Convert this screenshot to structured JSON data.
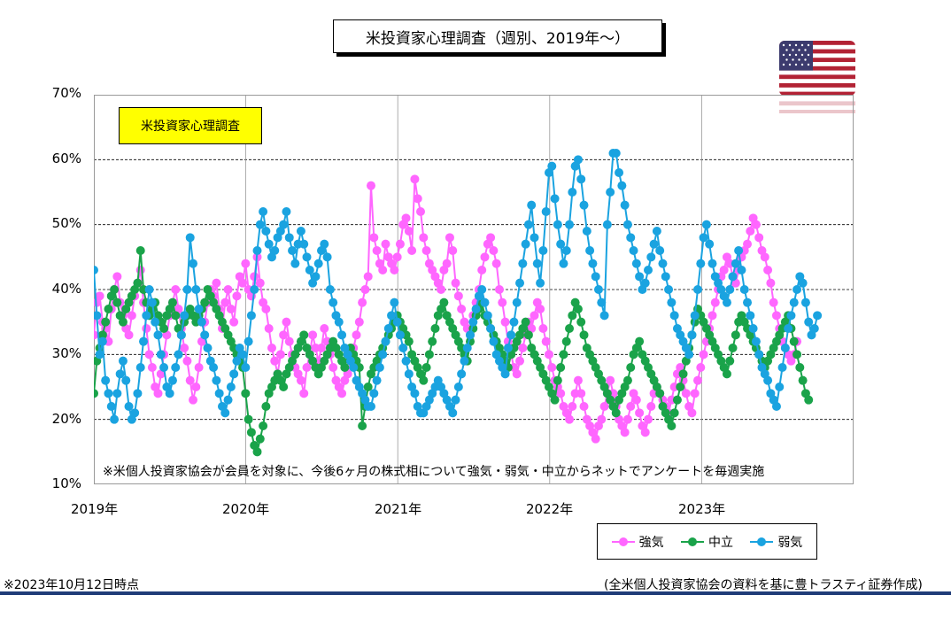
{
  "title": "米投資家心理調査（週別、2019年～）",
  "inner_label": "米投資家心理調査",
  "note": "※米個人投資家協会が会員を対象に、今後6ヶ月の株式相について強気・弱気・中立からネットでアンケートを毎週実施",
  "as_of": "※2023年10月12日時点",
  "source": "(全米個人投資家協会の資料を基に豊トラスティ証券作成)",
  "flag_icon": "us-flag-icon",
  "colors": {
    "bullish": "#ff66ff",
    "neutral": "#1aa34a",
    "bearish": "#1aa3e0",
    "accent_line": "#1f3c78"
  },
  "chart_data": {
    "type": "line",
    "title": "米投資家心理調査（週別、2019年～）",
    "x_tick_labels": [
      "2019年",
      "2020年",
      "2021年",
      "2022年",
      "2023年"
    ],
    "y_tick_labels": [
      "70%",
      "60%",
      "50%",
      "40%",
      "30%",
      "20%",
      "10%"
    ],
    "ylim": [
      10,
      70
    ],
    "x_unit": "year",
    "xlim": [
      2019.0,
      2024.0
    ],
    "grid": "horizontal dashed, vertical solid at year starts",
    "legend_position": "bottom-right",
    "series": [
      {
        "name": "強気",
        "color": "#ff66ff",
        "x_start": 2019.0,
        "x_step": 0.0192,
        "values": [
          33,
          38,
          39,
          35,
          34,
          32,
          37,
          40,
          42,
          38,
          36,
          34,
          33,
          36,
          39,
          41,
          43,
          38,
          34,
          30,
          28,
          25,
          24,
          27,
          30,
          33,
          36,
          38,
          40,
          37,
          34,
          31,
          29,
          26,
          23,
          25,
          28,
          32,
          35,
          38,
          40,
          39,
          41,
          37,
          34,
          38,
          40,
          37,
          35,
          39,
          42,
          41,
          44,
          40,
          39,
          42,
          45,
          41,
          38,
          37,
          34,
          31,
          29,
          27,
          30,
          33,
          35,
          32,
          30,
          28,
          27,
          26,
          24,
          28,
          30,
          33,
          31,
          29,
          31,
          34,
          32,
          30,
          28,
          26,
          25,
          24,
          26,
          27,
          29,
          31,
          33,
          35,
          38,
          40,
          42,
          56,
          48,
          46,
          44,
          43,
          47,
          45,
          44,
          43,
          45,
          47,
          50,
          51,
          49,
          46,
          57,
          54,
          52,
          48,
          46,
          44,
          43,
          42,
          41,
          40,
          43,
          44,
          48,
          46,
          41,
          39,
          37,
          35,
          34,
          33,
          36,
          38,
          40,
          43,
          45,
          47,
          48,
          46,
          44,
          40,
          38,
          35,
          32,
          30,
          28,
          27,
          29,
          31,
          33,
          35,
          34,
          36,
          38,
          37,
          34,
          32,
          30,
          28,
          26,
          25,
          24,
          22,
          21,
          20,
          22,
          24,
          26,
          24,
          22,
          20,
          19,
          18,
          17,
          19,
          20,
          22,
          24,
          26,
          24,
          22,
          20,
          19,
          18,
          20,
          22,
          24,
          23,
          21,
          19,
          18,
          20,
          22,
          24,
          25,
          24,
          23,
          22,
          21,
          23,
          25,
          27,
          28,
          26,
          24,
          22,
          21,
          24,
          26,
          28,
          30,
          32,
          34,
          36,
          38,
          40,
          42,
          43,
          45,
          44,
          42,
          41,
          43,
          45,
          46,
          47,
          49,
          51,
          50,
          48,
          46,
          45,
          43,
          41,
          38,
          36,
          34,
          32,
          31,
          30,
          29,
          30,
          32
        ]
      },
      {
        "name": "中立",
        "color": "#1aa34a",
        "x_start": 2019.0,
        "x_step": 0.0192,
        "values": [
          24,
          29,
          31,
          33,
          35,
          37,
          39,
          40,
          38,
          36,
          35,
          37,
          38,
          39,
          40,
          41,
          46,
          40,
          38,
          36,
          37,
          38,
          36,
          35,
          34,
          36,
          37,
          38,
          36,
          34,
          33,
          35,
          36,
          37,
          36,
          35,
          36,
          37,
          38,
          40,
          39,
          38,
          37,
          36,
          35,
          34,
          33,
          32,
          31,
          30,
          29,
          28,
          24,
          20,
          18,
          16,
          15,
          17,
          19,
          22,
          24,
          25,
          26,
          27,
          26,
          25,
          27,
          28,
          29,
          30,
          31,
          32,
          33,
          31,
          30,
          29,
          28,
          27,
          28,
          29,
          30,
          31,
          32,
          31,
          30,
          29,
          28,
          30,
          31,
          30,
          29,
          28,
          19,
          22,
          25,
          27,
          28,
          29,
          30,
          31,
          32,
          33,
          34,
          35,
          36,
          35,
          34,
          33,
          32,
          30,
          29,
          28,
          27,
          26,
          28,
          30,
          32,
          34,
          36,
          37,
          38,
          36,
          35,
          34,
          33,
          32,
          31,
          30,
          29,
          32,
          34,
          36,
          37,
          38,
          36,
          35,
          34,
          33,
          32,
          31,
          30,
          29,
          28,
          30,
          31,
          32,
          33,
          34,
          35,
          33,
          31,
          30,
          29,
          28,
          27,
          26,
          25,
          24,
          23,
          26,
          28,
          30,
          32,
          34,
          36,
          38,
          37,
          35,
          33,
          31,
          30,
          29,
          28,
          27,
          26,
          25,
          24,
          23,
          22,
          21,
          23,
          24,
          25,
          26,
          28,
          30,
          31,
          32,
          30,
          29,
          28,
          27,
          26,
          25,
          24,
          22,
          21,
          20,
          19,
          21,
          23,
          25,
          27,
          29,
          31,
          33,
          35,
          37,
          36,
          35,
          34,
          33,
          32,
          31,
          30,
          29,
          28,
          27,
          29,
          31,
          33,
          35,
          36,
          35,
          34,
          33,
          32,
          31,
          30,
          29,
          28,
          29,
          30,
          31,
          32,
          33,
          34,
          35,
          36,
          34,
          32,
          30,
          28,
          26,
          24,
          23
        ]
      },
      {
        "name": "弱気",
        "color": "#1aa3e0",
        "x_start": 2019.0,
        "x_step": 0.0192,
        "values": [
          43,
          36,
          30,
          32,
          26,
          24,
          22,
          20,
          24,
          27,
          29,
          26,
          22,
          20,
          21,
          24,
          28,
          32,
          36,
          40,
          38,
          35,
          33,
          30,
          28,
          25,
          24,
          26,
          28,
          30,
          33,
          36,
          40,
          48,
          44,
          40,
          37,
          35,
          33,
          31,
          29,
          28,
          26,
          24,
          22,
          21,
          23,
          25,
          27,
          29,
          31,
          30,
          28,
          32,
          36,
          40,
          46,
          50,
          52,
          49,
          47,
          45,
          46,
          48,
          49,
          50,
          52,
          48,
          46,
          44,
          47,
          49,
          47,
          45,
          43,
          41,
          42,
          44,
          46,
          47,
          45,
          40,
          38,
          36,
          35,
          33,
          31,
          30,
          29,
          28,
          26,
          25,
          24,
          23,
          22,
          22,
          24,
          26,
          28,
          30,
          32,
          34,
          36,
          38,
          35,
          33,
          31,
          29,
          27,
          25,
          24,
          22,
          21,
          21,
          22,
          23,
          24,
          25,
          26,
          25,
          24,
          23,
          22,
          21,
          23,
          25,
          27,
          29,
          31,
          33,
          35,
          37,
          39,
          40,
          38,
          36,
          34,
          32,
          30,
          29,
          28,
          27,
          31,
          33,
          35,
          38,
          41,
          44,
          47,
          50,
          53,
          48,
          44,
          41,
          46,
          52,
          58,
          59,
          54,
          50,
          47,
          44,
          46,
          50,
          55,
          59,
          60,
          57,
          53,
          49,
          46,
          44,
          42,
          40,
          38,
          36,
          50,
          55,
          61,
          61,
          58,
          56,
          53,
          50,
          48,
          46,
          44,
          42,
          40,
          41,
          43,
          45,
          47,
          49,
          46,
          44,
          42,
          40,
          38,
          36,
          34,
          33,
          32,
          31,
          30,
          33,
          36,
          40,
          44,
          48,
          50,
          47,
          44,
          42,
          41,
          40,
          39,
          38,
          40,
          42,
          44,
          46,
          43,
          40,
          38,
          36,
          34,
          32,
          30,
          28,
          27,
          26,
          24,
          23,
          22,
          25,
          28,
          31,
          34,
          36,
          38,
          40,
          42,
          41,
          38,
          35,
          33,
          34,
          36
        ]
      }
    ]
  }
}
